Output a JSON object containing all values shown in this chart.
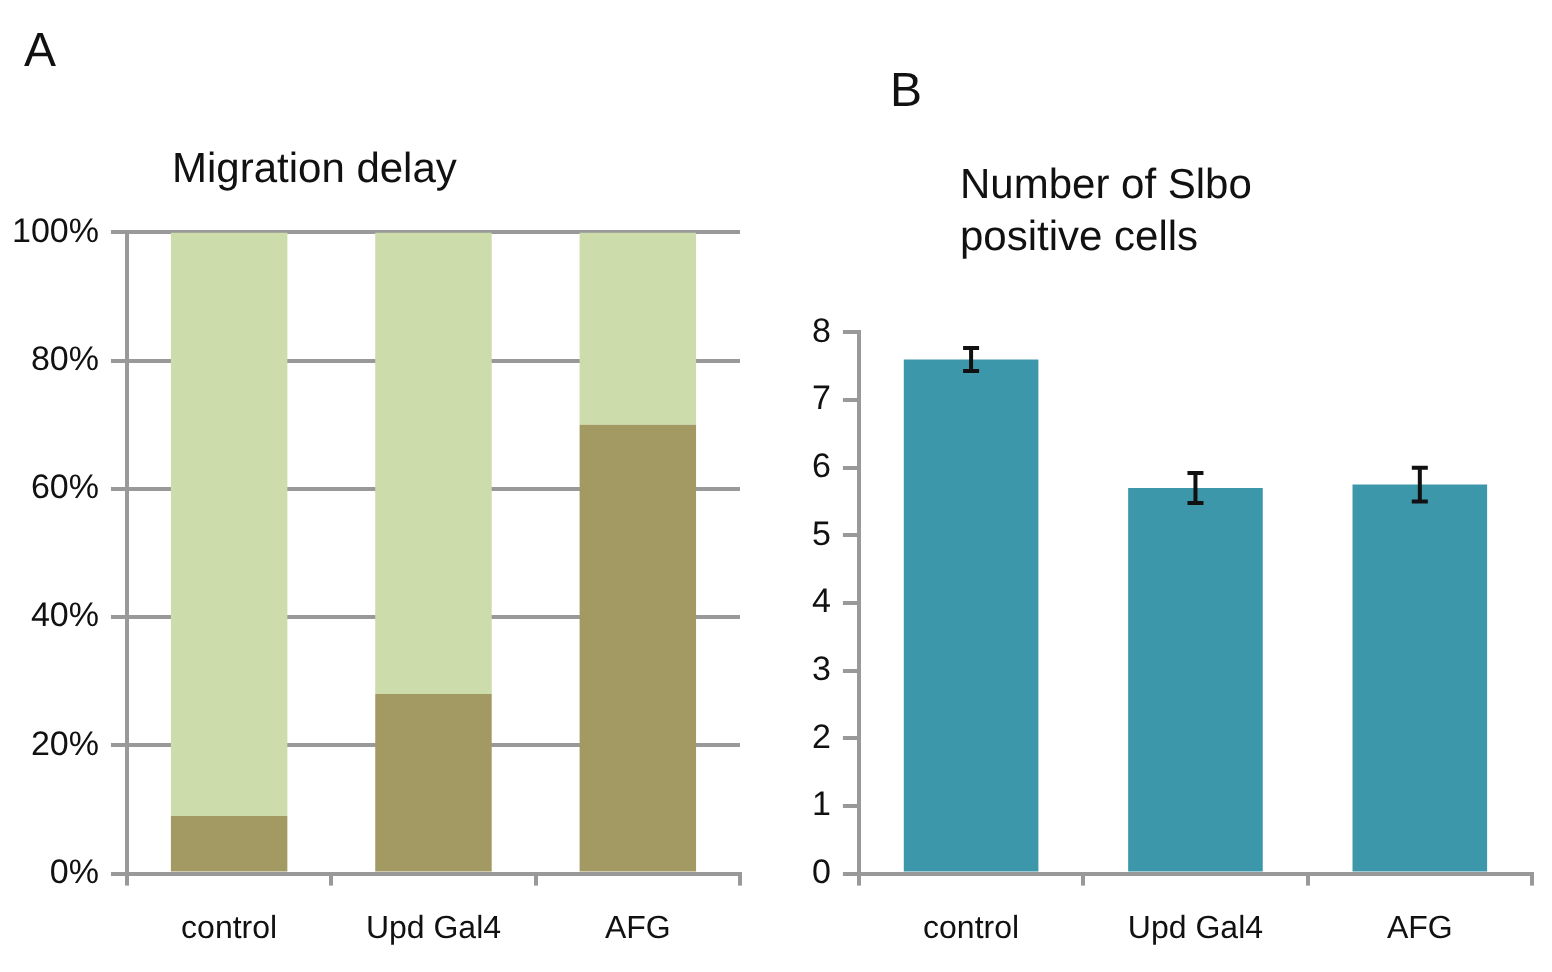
{
  "chart_data": [
    {
      "type": "bar",
      "annotations": [
        "A"
      ],
      "title": "Migration delay",
      "categories": [
        "control",
        "Upd Gal4",
        "AFG"
      ],
      "stacked": true,
      "series": [
        {
          "color": "#a39a63",
          "values": [
            9,
            28,
            70
          ]
        },
        {
          "color": "#ccdcaa",
          "values": [
            91,
            72,
            30
          ]
        }
      ],
      "ylim": [
        0,
        100
      ],
      "yticks": [
        {
          "value": 0,
          "label": "0%"
        },
        {
          "value": 20,
          "label": "20%"
        },
        {
          "value": 40,
          "label": "40%"
        },
        {
          "value": 60,
          "label": "60%"
        },
        {
          "value": 80,
          "label": "80%"
        },
        {
          "value": 100,
          "label": "100%"
        }
      ],
      "grid": "y",
      "legend": false
    },
    {
      "type": "bar",
      "annotations": [
        "B"
      ],
      "title": "Number of Slbo positive cells",
      "categories": [
        "control",
        "Upd Gal4",
        "AFG"
      ],
      "values": [
        7.6,
        5.7,
        5.75
      ],
      "color": "#3d97ab",
      "errors": [
        0.17,
        0.22,
        0.25
      ],
      "ylim": [
        0,
        8
      ],
      "yticks": [
        0,
        1,
        2,
        3,
        4,
        5,
        6,
        7,
        8
      ],
      "grid": false,
      "legend": false
    }
  ]
}
